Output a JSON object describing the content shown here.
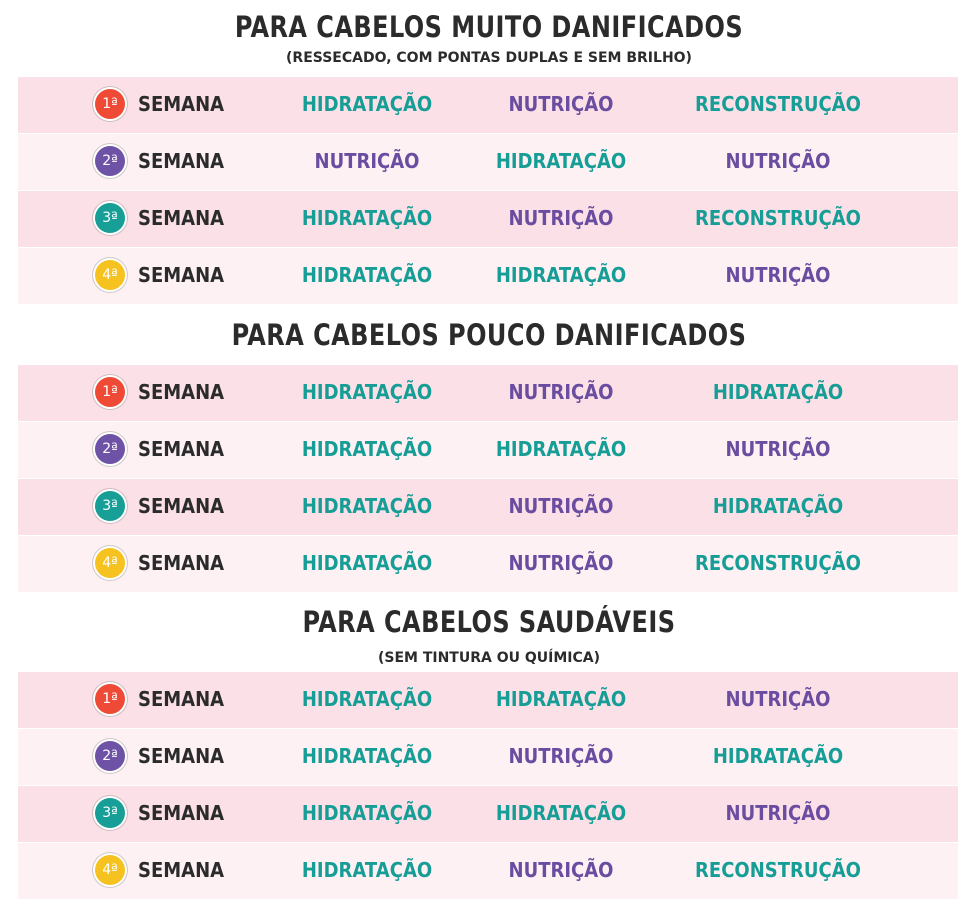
{
  "colors": {
    "hidratacao": "#169e96",
    "nutricao": "#6a4ca0",
    "reconstrucao": "#169e96",
    "badges": [
      "#ee4a35",
      "#6e52a6",
      "#179e96",
      "#f6c21f"
    ]
  },
  "week_label": "SEMANA",
  "ordinals": [
    "1ª",
    "2ª",
    "3ª",
    "4ª"
  ],
  "sections": [
    {
      "title": "PARA CABELOS MUITO DANIFICADOS",
      "subtitle": "(RESSECADO, COM PONTAS DUPLAS E SEM BRILHO)",
      "rows": [
        [
          "HIDRATAÇÃO",
          "NUTRIÇÃO",
          "RECONSTRUÇÃO"
        ],
        [
          "NUTRIÇÃO",
          "HIDRATAÇÃO",
          "NUTRIÇÃO"
        ],
        [
          "HIDRATAÇÃO",
          "NUTRIÇÃO",
          "RECONSTRUÇÃO"
        ],
        [
          "HIDRATAÇÃO",
          "HIDRATAÇÃO",
          "NUTRIÇÃO"
        ]
      ]
    },
    {
      "title": "PARA CABELOS POUCO DANIFICADOS",
      "rows": [
        [
          "HIDRATAÇÃO",
          "NUTRIÇÃO",
          "HIDRATAÇÃO"
        ],
        [
          "HIDRATAÇÃO",
          "HIDRATAÇÃO",
          "NUTRIÇÃO"
        ],
        [
          "HIDRATAÇÃO",
          "NUTRIÇÃO",
          "HIDRATAÇÃO"
        ],
        [
          "HIDRATAÇÃO",
          "NUTRIÇÃO",
          "RECONSTRUÇÃO"
        ]
      ]
    },
    {
      "title": "PARA CABELOS SAUDÁVEIS",
      "subtitle": "(SEM TINTURA OU QUÍMICA)",
      "rows": [
        [
          "HIDRATAÇÃO",
          "HIDRATAÇÃO",
          "NUTRIÇÃO"
        ],
        [
          "HIDRATAÇÃO",
          "NUTRIÇÃO",
          "HIDRATAÇÃO"
        ],
        [
          "HIDRATAÇÃO",
          "HIDRATAÇÃO",
          "NUTRIÇÃO"
        ],
        [
          "HIDRATAÇÃO",
          "NUTRIÇÃO",
          "RECONSTRUÇÃO"
        ]
      ]
    }
  ]
}
